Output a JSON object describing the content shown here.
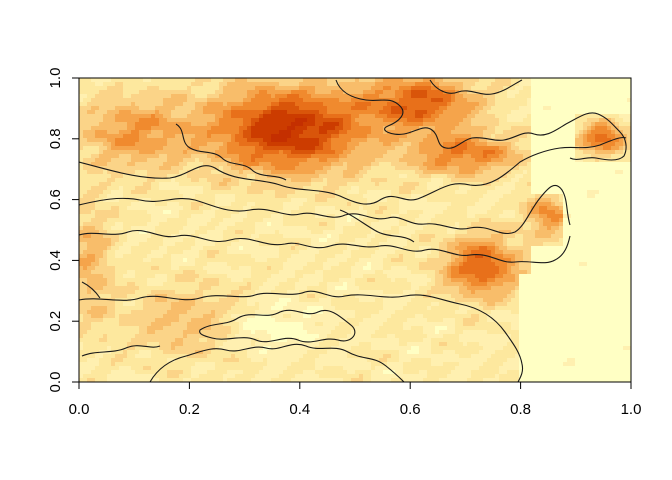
{
  "chart_data": {
    "type": "heatmap",
    "title": "",
    "xlabel": "",
    "ylabel": "",
    "xlim": [
      0,
      1
    ],
    "ylim": [
      0,
      1
    ],
    "x_ticks": [
      "0.0",
      "0.2",
      "0.4",
      "0.6",
      "0.8",
      "1.0"
    ],
    "y_ticks": [
      "0.0",
      "0.2",
      "0.4",
      "0.6",
      "0.8",
      "1.0"
    ],
    "palette": [
      "#ffffc4",
      "#fff0b0",
      "#fde89e",
      "#fbd488",
      "#f8bd6a",
      "#f5a44b",
      "#f08a2e",
      "#e8701a",
      "#d9550a",
      "#cc3c00",
      "#c42f00"
    ],
    "grid": false,
    "legend": "none",
    "contour_lines": true,
    "notes_visible": "terrain-colour raster with a single black contour overlay"
  }
}
